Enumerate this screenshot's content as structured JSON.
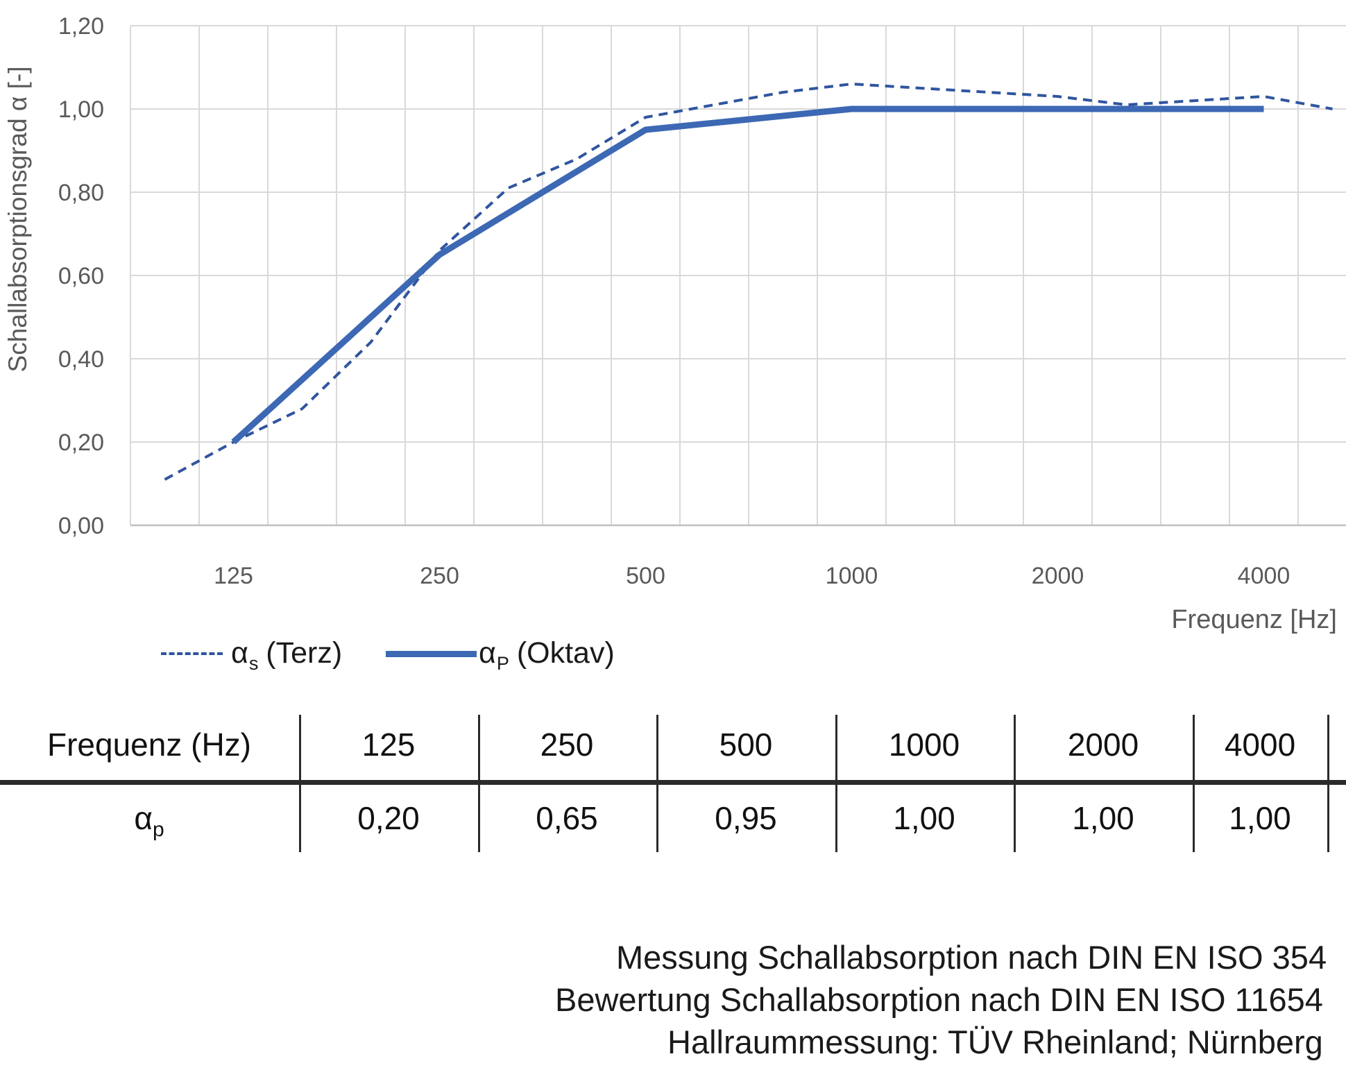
{
  "chart_data": {
    "type": "line",
    "title": "",
    "xlabel": "Frequenz [Hz]",
    "ylabel": "Schallabsorptionsgrad α [-]",
    "x_scale": "logarithmic (third-octave band categories)",
    "categories": [
      100,
      125,
      160,
      200,
      250,
      315,
      400,
      500,
      630,
      800,
      1000,
      1250,
      1600,
      2000,
      2500,
      3150,
      4000,
      5000
    ],
    "x_ticks": [
      {
        "f": 125,
        "label": "125"
      },
      {
        "f": 250,
        "label": "250"
      },
      {
        "f": 500,
        "label": "500"
      },
      {
        "f": 1000,
        "label": "1000"
      },
      {
        "f": 2000,
        "label": "2000"
      },
      {
        "f": 4000,
        "label": "4000"
      }
    ],
    "y_ticks": [
      {
        "v": 0.0,
        "label": "0,00"
      },
      {
        "v": 0.2,
        "label": "0,20"
      },
      {
        "v": 0.4,
        "label": "0,40"
      },
      {
        "v": 0.6,
        "label": "0,60"
      },
      {
        "v": 0.8,
        "label": "0,80"
      },
      {
        "v": 1.0,
        "label": "1,00"
      },
      {
        "v": 1.2,
        "label": "1,20"
      }
    ],
    "ylim": [
      0,
      1.2
    ],
    "grid": true,
    "legend_position": "bottom-left",
    "series": [
      {
        "name": "αs (Terz)",
        "style": "dashed",
        "color": "#30559E",
        "x": [
          100,
          125,
          160,
          200,
          250,
          315,
          400,
          500,
          630,
          800,
          1000,
          1250,
          1600,
          2000,
          2500,
          3150,
          4000,
          5000
        ],
        "values": [
          0.11,
          0.2,
          0.28,
          0.44,
          0.66,
          0.81,
          0.88,
          0.98,
          1.01,
          1.04,
          1.06,
          1.05,
          1.04,
          1.03,
          1.01,
          1.02,
          1.03,
          1.0
        ]
      },
      {
        "name": "αP (Oktav)",
        "style": "solid",
        "color": "#3C68B4",
        "x": [
          125,
          250,
          500,
          1000,
          2000,
          4000
        ],
        "values": [
          0.2,
          0.65,
          0.95,
          1.0,
          1.0,
          1.0
        ]
      }
    ]
  },
  "legend": {
    "terz": {
      "symbol": "α",
      "sub": "s",
      "rest": " (Terz)"
    },
    "oktav": {
      "symbol": "α",
      "sub": "P",
      "rest": " (Oktav)"
    }
  },
  "table": {
    "header_label": "Frequenz (Hz)",
    "header_freqs": [
      "125",
      "250",
      "500",
      "1000",
      "2000",
      "4000"
    ],
    "row_symbol": "α",
    "row_sub": "p",
    "values": [
      "0,20",
      "0,65",
      "0,95",
      "1,00",
      "1,00",
      "1,00"
    ]
  },
  "footer_lines": [
    "Messung Schallabsorption nach DIN EN ISO 354",
    "Bewertung Schallabsorption nach DIN EN ISO 11654",
    "Hallraummessung: TÜV Rheinland; Nürnberg"
  ],
  "colors": {
    "grid": "#D9D9D9",
    "axis_line": "#BFBFBF",
    "axis_text": "#595959",
    "terz_line": "#30559E",
    "oktav_line": "#3C68B4",
    "table_rule": "#2B2B2B",
    "body_text": "#1A1A1A"
  }
}
